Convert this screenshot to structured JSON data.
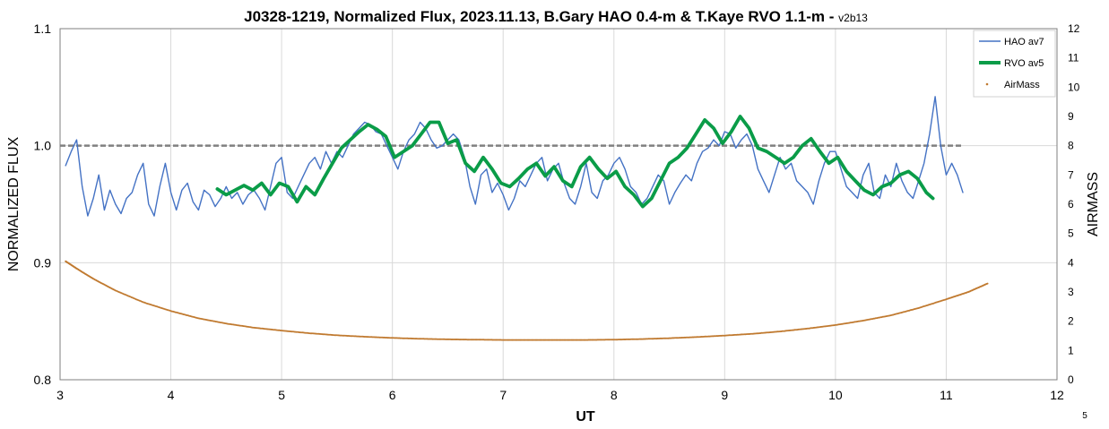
{
  "chart_data": {
    "type": "line",
    "title": "J0328-1219, Normalized Flux, 2023.11.13, B.Gary HAO 0.4-m & T.Kaye RVO 1.1-m - ",
    "title_suffix": "v2b13",
    "xlabel": "UT",
    "ylabel": "NORMALIZED FLUX",
    "y2label": "AIRMASS",
    "xlim": [
      3,
      12
    ],
    "ylim": [
      0.8,
      1.1
    ],
    "y2lim": [
      0,
      12
    ],
    "xticks": [
      "3",
      "4",
      "5",
      "6",
      "7",
      "8",
      "9",
      "10",
      "11",
      "12"
    ],
    "yticks": [
      "0.8",
      "0.9",
      "1.0",
      "1.1"
    ],
    "y2ticks": [
      "0",
      "1",
      "2",
      "3",
      "4",
      "5",
      "6",
      "7",
      "8",
      "9",
      "10",
      "11",
      "12"
    ],
    "grid": true,
    "legend_position": "top-right",
    "corner_label": "5",
    "reference_line": {
      "y": 1.0,
      "x": [
        3.0,
        11.15
      ],
      "style": "dashed",
      "color": "#808080"
    },
    "series": [
      {
        "name": "HAO av7",
        "color": "#4472C4",
        "axis": "left",
        "x": [
          3.05,
          3.1,
          3.15,
          3.2,
          3.25,
          3.3,
          3.35,
          3.4,
          3.45,
          3.5,
          3.55,
          3.6,
          3.65,
          3.7,
          3.75,
          3.8,
          3.85,
          3.9,
          3.95,
          4.0,
          4.05,
          4.1,
          4.15,
          4.2,
          4.25,
          4.3,
          4.35,
          4.4,
          4.45,
          4.5,
          4.55,
          4.6,
          4.65,
          4.7,
          4.75,
          4.8,
          4.85,
          4.9,
          4.95,
          5.0,
          5.05,
          5.1,
          5.15,
          5.2,
          5.25,
          5.3,
          5.35,
          5.4,
          5.45,
          5.5,
          5.55,
          5.6,
          5.65,
          5.7,
          5.75,
          5.8,
          5.85,
          5.9,
          5.95,
          6.0,
          6.05,
          6.1,
          6.15,
          6.2,
          6.25,
          6.3,
          6.35,
          6.4,
          6.45,
          6.5,
          6.55,
          6.6,
          6.65,
          6.7,
          6.75,
          6.8,
          6.85,
          6.9,
          6.95,
          7.0,
          7.05,
          7.1,
          7.15,
          7.2,
          7.25,
          7.3,
          7.35,
          7.4,
          7.45,
          7.5,
          7.55,
          7.6,
          7.65,
          7.7,
          7.75,
          7.8,
          7.85,
          7.9,
          7.95,
          8.0,
          8.05,
          8.1,
          8.15,
          8.2,
          8.25,
          8.3,
          8.35,
          8.4,
          8.45,
          8.5,
          8.55,
          8.6,
          8.65,
          8.7,
          8.75,
          8.8,
          8.85,
          8.9,
          8.95,
          9.0,
          9.05,
          9.1,
          9.15,
          9.2,
          9.25,
          9.3,
          9.35,
          9.4,
          9.45,
          9.5,
          9.55,
          9.6,
          9.65,
          9.7,
          9.75,
          9.8,
          9.85,
          9.9,
          9.95,
          10.0,
          10.05,
          10.1,
          10.15,
          10.2,
          10.25,
          10.3,
          10.35,
          10.4,
          10.45,
          10.5,
          10.55,
          10.6,
          10.65,
          10.7,
          10.75,
          10.8,
          10.85,
          10.9,
          10.95,
          11.0,
          11.05,
          11.1,
          11.15
        ],
        "y": [
          0.983,
          0.995,
          1.005,
          0.965,
          0.94,
          0.955,
          0.975,
          0.945,
          0.962,
          0.95,
          0.942,
          0.955,
          0.96,
          0.975,
          0.985,
          0.95,
          0.94,
          0.965,
          0.985,
          0.96,
          0.945,
          0.962,
          0.968,
          0.952,
          0.945,
          0.962,
          0.958,
          0.948,
          0.955,
          0.965,
          0.955,
          0.96,
          0.95,
          0.958,
          0.962,
          0.955,
          0.945,
          0.965,
          0.985,
          0.99,
          0.96,
          0.955,
          0.965,
          0.975,
          0.985,
          0.99,
          0.98,
          0.995,
          0.985,
          0.995,
          0.99,
          1.0,
          1.01,
          1.015,
          1.02,
          1.018,
          1.012,
          1.01,
          1.0,
          0.99,
          0.98,
          0.995,
          1.005,
          1.01,
          1.02,
          1.015,
          1.005,
          0.998,
          1.0,
          1.005,
          1.01,
          1.005,
          0.99,
          0.965,
          0.95,
          0.975,
          0.98,
          0.96,
          0.968,
          0.958,
          0.945,
          0.955,
          0.97,
          0.965,
          0.975,
          0.985,
          0.99,
          0.97,
          0.98,
          0.985,
          0.968,
          0.955,
          0.95,
          0.965,
          0.985,
          0.96,
          0.955,
          0.97,
          0.975,
          0.985,
          0.99,
          0.98,
          0.965,
          0.96,
          0.95,
          0.955,
          0.965,
          0.975,
          0.97,
          0.95,
          0.96,
          0.968,
          0.975,
          0.97,
          0.985,
          0.995,
          0.998,
          1.005,
          1.0,
          1.012,
          1.01,
          0.998,
          1.005,
          1.01,
          1.0,
          0.98,
          0.97,
          0.96,
          0.975,
          0.99,
          0.98,
          0.985,
          0.97,
          0.965,
          0.96,
          0.95,
          0.97,
          0.985,
          0.995,
          0.995,
          0.98,
          0.965,
          0.96,
          0.955,
          0.975,
          0.985,
          0.96,
          0.955,
          0.975,
          0.965,
          0.985,
          0.97,
          0.96,
          0.955,
          0.97,
          0.985,
          1.01,
          1.042,
          1.0,
          0.975,
          0.985,
          0.975,
          0.96
        ]
      },
      {
        "name": "RVO av5",
        "color": "#0A9C48",
        "axis": "left",
        "x": [
          4.42,
          4.5,
          4.58,
          4.66,
          4.74,
          4.82,
          4.9,
          4.98,
          5.06,
          5.14,
          5.22,
          5.3,
          5.38,
          5.46,
          5.54,
          5.62,
          5.7,
          5.78,
          5.86,
          5.94,
          6.02,
          6.1,
          6.18,
          6.26,
          6.34,
          6.42,
          6.5,
          6.58,
          6.66,
          6.74,
          6.82,
          6.9,
          6.98,
          7.06,
          7.14,
          7.22,
          7.3,
          7.38,
          7.46,
          7.54,
          7.62,
          7.7,
          7.78,
          7.86,
          7.94,
          8.02,
          8.1,
          8.18,
          8.26,
          8.34,
          8.42,
          8.5,
          8.58,
          8.66,
          8.74,
          8.82,
          8.9,
          8.98,
          9.06,
          9.14,
          9.22,
          9.3,
          9.38,
          9.46,
          9.54,
          9.62,
          9.7,
          9.78,
          9.86,
          9.94,
          10.02,
          10.1,
          10.18,
          10.26,
          10.34,
          10.42,
          10.5,
          10.58,
          10.66,
          10.74,
          10.82,
          10.88
        ],
        "y": [
          0.963,
          0.958,
          0.962,
          0.966,
          0.962,
          0.968,
          0.958,
          0.968,
          0.965,
          0.952,
          0.965,
          0.958,
          0.972,
          0.985,
          0.998,
          1.005,
          1.012,
          1.018,
          1.014,
          1.008,
          0.99,
          0.995,
          1.0,
          1.01,
          1.02,
          1.02,
          1.002,
          1.005,
          0.985,
          0.978,
          0.99,
          0.98,
          0.968,
          0.965,
          0.972,
          0.98,
          0.985,
          0.974,
          0.982,
          0.97,
          0.965,
          0.982,
          0.99,
          0.98,
          0.972,
          0.978,
          0.965,
          0.958,
          0.948,
          0.955,
          0.97,
          0.985,
          0.99,
          0.998,
          1.01,
          1.022,
          1.015,
          1.002,
          1.012,
          1.025,
          1.015,
          0.998,
          0.995,
          0.99,
          0.985,
          0.99,
          1.0,
          1.006,
          0.995,
          0.985,
          0.99,
          0.978,
          0.97,
          0.962,
          0.958,
          0.965,
          0.968,
          0.975,
          0.978,
          0.972,
          0.96,
          0.955
        ]
      },
      {
        "name": "AirMass",
        "color": "#C07A30",
        "axis": "right",
        "x": [
          3.05,
          3.15,
          3.3,
          3.5,
          3.75,
          4.0,
          4.25,
          4.5,
          4.75,
          5.0,
          5.25,
          5.5,
          5.75,
          6.0,
          6.25,
          6.5,
          6.75,
          7.0,
          7.25,
          7.5,
          7.75,
          8.0,
          8.25,
          8.5,
          8.75,
          9.0,
          9.25,
          9.5,
          9.75,
          10.0,
          10.25,
          10.5,
          10.75,
          11.0,
          11.2,
          11.38
        ],
        "y": [
          4.05,
          3.8,
          3.45,
          3.05,
          2.65,
          2.35,
          2.1,
          1.92,
          1.78,
          1.68,
          1.59,
          1.52,
          1.47,
          1.43,
          1.4,
          1.38,
          1.37,
          1.36,
          1.36,
          1.36,
          1.36,
          1.37,
          1.39,
          1.42,
          1.46,
          1.51,
          1.57,
          1.65,
          1.75,
          1.87,
          2.02,
          2.2,
          2.45,
          2.75,
          3.0,
          3.3
        ]
      }
    ]
  }
}
